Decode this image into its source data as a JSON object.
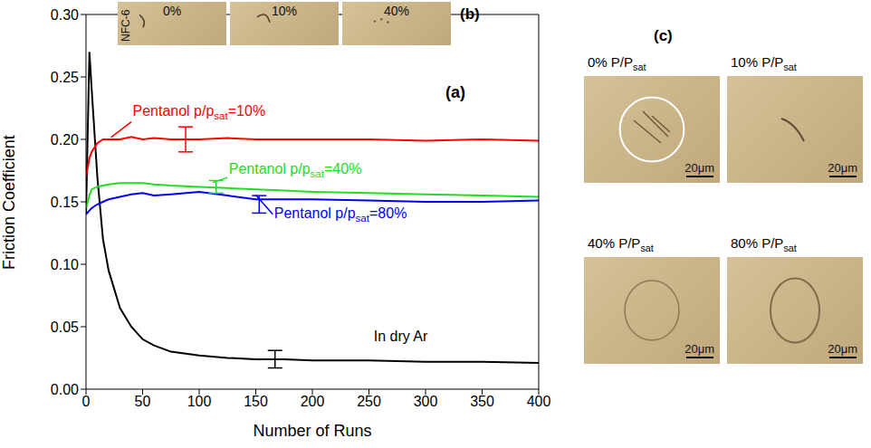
{
  "chart_data": {
    "type": "line",
    "panel_label": "(a)",
    "x_label": "Number of Runs",
    "y_label": "Friction Coefficient",
    "x": [
      0,
      3,
      5,
      10,
      15,
      20,
      30,
      40,
      50,
      60,
      75,
      100,
      125,
      150,
      175,
      200,
      250,
      300,
      350,
      400
    ],
    "series": [
      {
        "name": "In dry Ar",
        "color": "#000000",
        "values": [
          0.14,
          0.27,
          0.24,
          0.17,
          0.12,
          0.095,
          0.065,
          0.05,
          0.04,
          0.035,
          0.03,
          0.027,
          0.025,
          0.024,
          0.024,
          0.023,
          0.023,
          0.022,
          0.022,
          0.021
        ],
        "error_bar": {
          "x": 167,
          "value": 0.024,
          "error": 0.007
        }
      },
      {
        "name": "Pentanol p/psat=10%",
        "color": "#ff0000",
        "values": [
          0.17,
          0.185,
          0.19,
          0.197,
          0.2,
          0.2,
          0.2,
          0.202,
          0.2,
          0.201,
          0.2,
          0.2,
          0.201,
          0.2,
          0.2,
          0.2,
          0.2,
          0.199,
          0.2,
          0.199
        ],
        "error_bar": {
          "x": 88,
          "value": 0.2,
          "error": 0.01
        }
      },
      {
        "name": "Pentanol p/psat=40%",
        "color": "#22dd22",
        "values": [
          0.145,
          0.155,
          0.16,
          0.162,
          0.163,
          0.164,
          0.165,
          0.165,
          0.165,
          0.164,
          0.163,
          0.162,
          0.161,
          0.16,
          0.159,
          0.158,
          0.157,
          0.156,
          0.155,
          0.154
        ],
        "error_bar": {
          "x": 115,
          "value": 0.162,
          "error": 0.005
        }
      },
      {
        "name": "Pentanol p/psat=80%",
        "color": "#0000ff",
        "values": [
          0.14,
          0.143,
          0.145,
          0.148,
          0.15,
          0.152,
          0.154,
          0.156,
          0.157,
          0.155,
          0.156,
          0.158,
          0.155,
          0.152,
          0.152,
          0.152,
          0.151,
          0.15,
          0.15,
          0.151
        ],
        "error_bar": {
          "x": 153,
          "value": 0.148,
          "error": 0.007
        }
      }
    ],
    "xlim": [
      0,
      400
    ],
    "xticks": [
      0,
      50,
      100,
      150,
      200,
      250,
      300,
      350,
      400
    ],
    "ylim": [
      0,
      0.3
    ],
    "yticks": [
      {
        "value": 0,
        "label": "0.00"
      },
      0.05,
      {
        "value": 0.1,
        "label": "0.10"
      },
      0.15,
      {
        "value": 0.2,
        "label": "0.20"
      },
      0.25,
      {
        "value": 0.3,
        "label": "0.30"
      }
    ],
    "grid": false
  },
  "panel_b": {
    "panel_label": "(b)",
    "sample": "NFC-6",
    "images": [
      "0%",
      "10%",
      "40%"
    ]
  },
  "panel_c": {
    "panel_label": "(c)",
    "images": [
      "0% P/Psat",
      "10% P/Psat",
      "40% P/Psat",
      "80% P/Psat"
    ],
    "scale_bar": "20μm"
  }
}
